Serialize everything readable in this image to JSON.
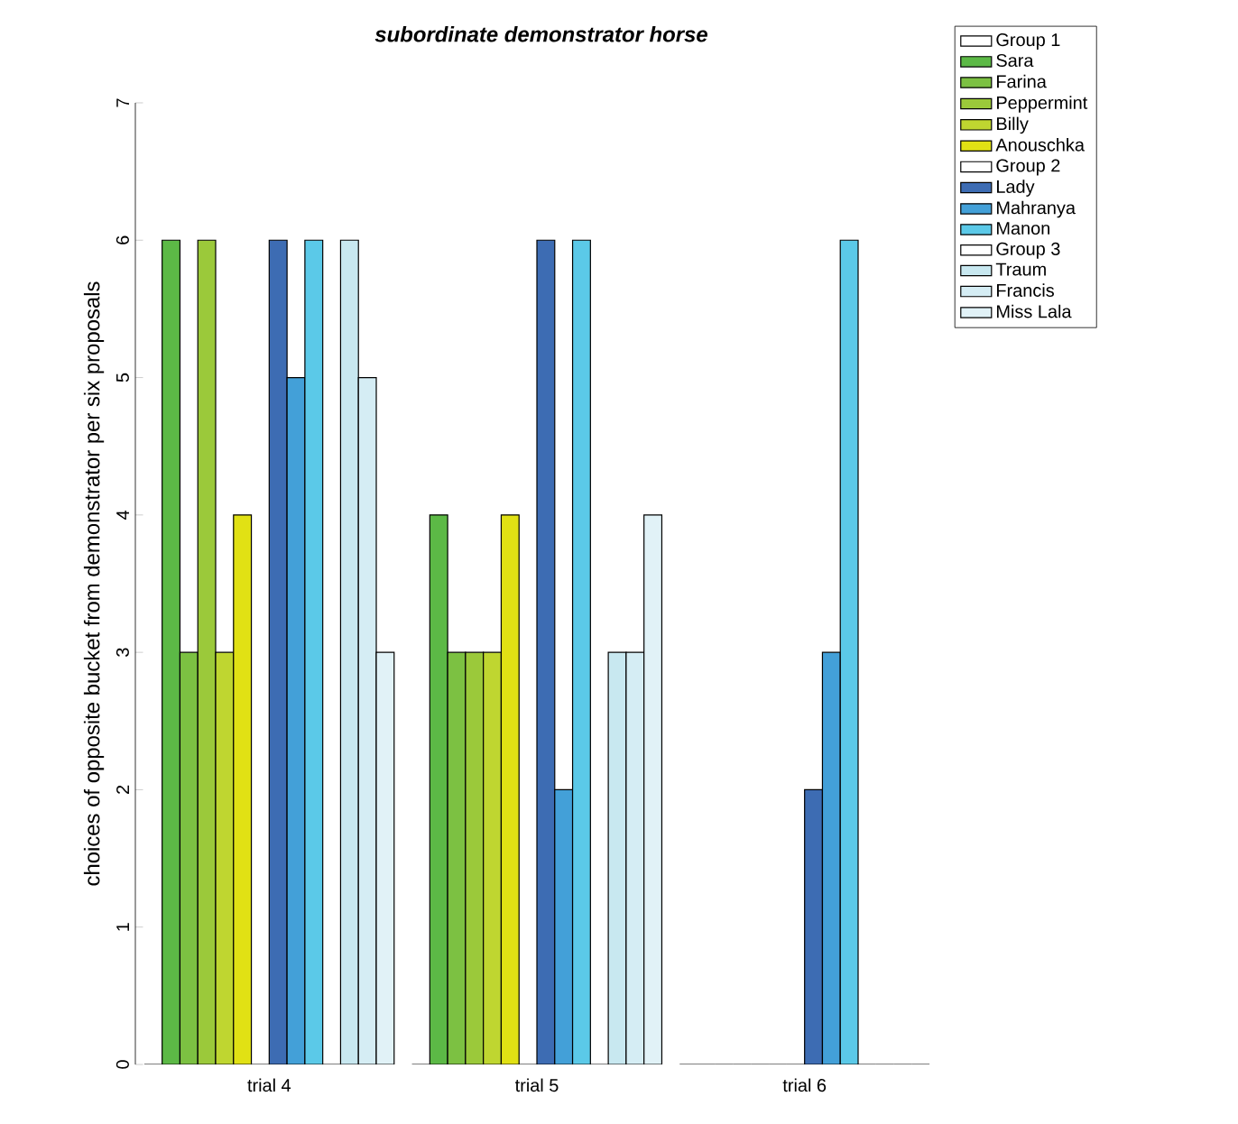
{
  "chart_data": {
    "type": "bar",
    "subtitle": "subordinate demonstrator horse",
    "ylabel": "choices of opposite bucket from demonstrator per six proposals",
    "categories": [
      "trial 4",
      "trial 5",
      "trial 6"
    ],
    "series": [
      {
        "name": "Group 1",
        "color": "#ffffff",
        "values": [
          0,
          0,
          0
        ]
      },
      {
        "name": "Sara",
        "color": "#5cb946",
        "values": [
          6,
          4,
          0
        ]
      },
      {
        "name": "Farina",
        "color": "#7cc142",
        "values": [
          3,
          3,
          0
        ]
      },
      {
        "name": "Peppermint",
        "color": "#9bc93a",
        "values": [
          6,
          3,
          0
        ]
      },
      {
        "name": "Billy",
        "color": "#bfd630",
        "values": [
          3,
          3,
          0
        ]
      },
      {
        "name": "Anouschka",
        "color": "#e1e114",
        "values": [
          4,
          4,
          0
        ]
      },
      {
        "name": "Group 2",
        "color": "#ffffff",
        "values": [
          0,
          0,
          0
        ]
      },
      {
        "name": "Lady",
        "color": "#3d6cb3",
        "values": [
          6,
          6,
          2
        ]
      },
      {
        "name": "Mahranya",
        "color": "#43a0d8",
        "values": [
          5,
          2,
          3
        ]
      },
      {
        "name": "Manon",
        "color": "#5bc9e8",
        "values": [
          6,
          6,
          6
        ]
      },
      {
        "name": "Group 3",
        "color": "#ffffff",
        "values": [
          0,
          0,
          0
        ]
      },
      {
        "name": "Traum",
        "color": "#c8e8f0",
        "values": [
          6,
          3,
          0
        ]
      },
      {
        "name": "Francis",
        "color": "#d5edf4",
        "values": [
          5,
          3,
          0
        ]
      },
      {
        "name": "Miss Lala",
        "color": "#e1f2f7",
        "values": [
          3,
          4,
          0
        ]
      }
    ],
    "ylim": [
      0,
      7
    ],
    "yticks": [
      0,
      1,
      2,
      3,
      4,
      5,
      6,
      7
    ],
    "legend": "right"
  }
}
